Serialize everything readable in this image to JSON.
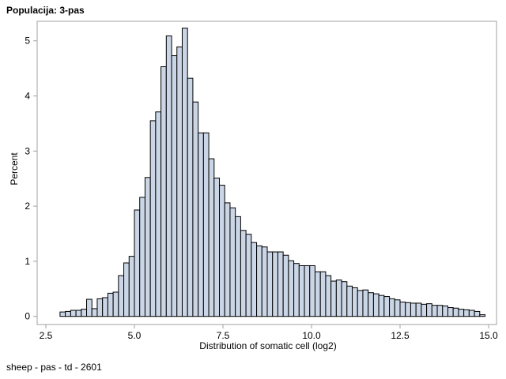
{
  "chart_data": {
    "type": "bar",
    "title": "Populacija: 3-pas",
    "footnote": "sheep - pas - td - 2601",
    "xlabel": "Distribution of somatic cell (log2)",
    "ylabel": "Percent",
    "xlim": [
      2.5,
      15.0
    ],
    "ylim": [
      0,
      5.3
    ],
    "xticks": [
      "2.5",
      "5.0",
      "7.5",
      "10.0",
      "12.5",
      "15.0"
    ],
    "yticks": [
      "0",
      "1",
      "2",
      "3",
      "4",
      "5"
    ],
    "bin_start": 2.9,
    "bin_width": 0.15,
    "values": [
      0.08,
      0.09,
      0.11,
      0.11,
      0.13,
      0.31,
      0.14,
      0.32,
      0.34,
      0.42,
      0.44,
      0.74,
      0.97,
      1.09,
      1.93,
      2.16,
      2.52,
      3.55,
      3.71,
      4.53,
      5.09,
      4.73,
      4.89,
      5.23,
      4.32,
      3.89,
      3.33,
      3.33,
      2.86,
      2.51,
      2.38,
      2.06,
      1.97,
      1.81,
      1.56,
      1.49,
      1.34,
      1.28,
      1.26,
      1.17,
      1.17,
      1.17,
      1.11,
      1.01,
      0.96,
      0.92,
      0.92,
      0.92,
      0.81,
      0.81,
      0.74,
      0.64,
      0.66,
      0.63,
      0.55,
      0.52,
      0.47,
      0.48,
      0.43,
      0.41,
      0.38,
      0.36,
      0.32,
      0.3,
      0.26,
      0.25,
      0.24,
      0.24,
      0.22,
      0.23,
      0.2,
      0.2,
      0.19,
      0.16,
      0.15,
      0.13,
      0.12,
      0.11,
      0.09,
      0.03
    ],
    "grid": false,
    "bar_color": "#cad5e5",
    "edge_color": "#000000"
  }
}
